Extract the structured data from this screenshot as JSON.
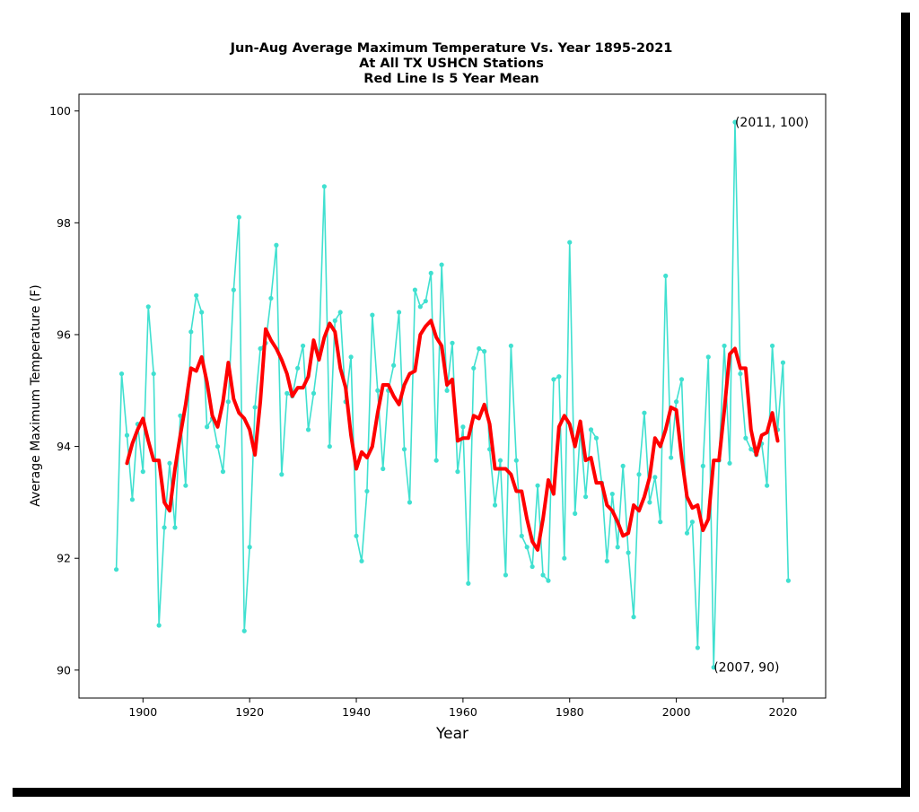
{
  "chart_data": {
    "type": "line",
    "title_lines": [
      "Jun-Aug Average Maximum Temperature Vs. Year 1895-2021",
      "At All TX USHCN Stations",
      "Red Line Is 5 Year Mean"
    ],
    "xlabel": "Year",
    "ylabel": "Average Maximum Temperature (F)",
    "xlim": [
      1888,
      2028
    ],
    "ylim": [
      89.5,
      100.3
    ],
    "xticks": [
      1900,
      1920,
      1940,
      1960,
      1980,
      2000,
      2020
    ],
    "yticks": [
      90,
      92,
      94,
      96,
      98,
      100
    ],
    "grid": false,
    "colors": {
      "series": "#40e0d0",
      "mean": "#ff0000"
    },
    "x": [
      1895,
      1896,
      1897,
      1898,
      1899,
      1900,
      1901,
      1902,
      1903,
      1904,
      1905,
      1906,
      1907,
      1908,
      1909,
      1910,
      1911,
      1912,
      1913,
      1914,
      1915,
      1916,
      1917,
      1918,
      1919,
      1920,
      1921,
      1922,
      1923,
      1924,
      1925,
      1926,
      1927,
      1928,
      1929,
      1930,
      1931,
      1932,
      1933,
      1934,
      1935,
      1936,
      1937,
      1938,
      1939,
      1940,
      1941,
      1942,
      1943,
      1944,
      1945,
      1946,
      1947,
      1948,
      1949,
      1950,
      1951,
      1952,
      1953,
      1954,
      1955,
      1956,
      1957,
      1958,
      1959,
      1960,
      1961,
      1962,
      1963,
      1964,
      1965,
      1966,
      1967,
      1968,
      1969,
      1970,
      1971,
      1972,
      1973,
      1974,
      1975,
      1976,
      1977,
      1978,
      1979,
      1980,
      1981,
      1982,
      1983,
      1984,
      1985,
      1986,
      1987,
      1988,
      1989,
      1990,
      1991,
      1992,
      1993,
      1994,
      1995,
      1996,
      1997,
      1998,
      1999,
      2000,
      2001,
      2002,
      2003,
      2004,
      2005,
      2006,
      2007,
      2008,
      2009,
      2010,
      2011,
      2012,
      2013,
      2014,
      2015,
      2016,
      2017,
      2018,
      2019,
      2020,
      2021
    ],
    "series": [
      {
        "values": [
          91.8,
          95.3,
          94.2,
          93.05,
          94.4,
          93.55,
          96.5,
          95.3,
          90.8,
          92.55,
          93.7,
          92.55,
          94.55,
          93.3,
          96.05,
          96.7,
          96.4,
          94.35,
          94.5,
          94.0,
          93.55,
          94.8,
          96.8,
          98.1,
          90.7,
          92.2,
          94.7,
          95.75,
          95.85,
          96.65,
          97.6,
          93.5,
          94.95,
          94.9,
          95.4,
          95.8,
          94.3,
          94.95,
          95.7,
          98.65,
          94.0,
          96.25,
          96.4,
          94.8,
          95.6,
          92.4,
          91.95,
          93.2,
          96.35,
          95.0,
          93.6,
          95.0,
          95.45,
          96.4,
          93.95,
          93.0,
          96.8,
          96.5,
          96.6,
          97.1,
          93.75,
          97.25,
          95.0,
          95.85,
          93.55,
          94.35,
          91.55,
          95.4,
          95.75,
          95.7,
          93.95,
          92.95,
          93.75,
          91.7,
          95.8,
          93.75,
          92.4,
          92.2,
          91.85,
          93.3,
          91.7,
          91.6,
          95.2,
          95.25,
          92.0,
          97.65,
          92.8,
          94.3,
          93.1,
          94.3,
          94.15,
          93.35,
          91.95,
          93.15,
          92.2,
          93.65,
          92.1,
          90.95,
          93.5,
          94.6,
          93.0,
          93.45,
          92.65,
          97.05,
          93.8,
          94.8,
          95.2,
          92.45,
          92.65,
          90.4,
          93.65,
          95.6,
          90.05,
          93.75,
          95.8,
          93.7,
          99.8,
          95.3,
          94.15,
          93.95,
          93.85,
          94.05,
          93.3,
          95.8,
          94.3,
          95.5,
          91.6
        ]
      },
      {
        "values": [
          null,
          null,
          93.7,
          94.05,
          94.3,
          94.5,
          94.1,
          93.75,
          93.75,
          93.0,
          92.85,
          93.6,
          94.2,
          94.75,
          95.4,
          95.35,
          95.6,
          95.15,
          94.55,
          94.35,
          94.8,
          95.5,
          94.85,
          94.6,
          94.5,
          94.3,
          93.85,
          94.8,
          96.1,
          95.9,
          95.75,
          95.55,
          95.3,
          94.9,
          95.05,
          95.05,
          95.25,
          95.9,
          95.55,
          95.95,
          96.2,
          96.05,
          95.4,
          95.05,
          94.2,
          93.6,
          93.9,
          93.8,
          94.0,
          94.6,
          95.1,
          95.1,
          94.9,
          94.75,
          95.1,
          95.3,
          95.35,
          96.0,
          96.15,
          96.25,
          95.95,
          95.8,
          95.1,
          95.2,
          94.1,
          94.15,
          94.15,
          94.55,
          94.5,
          94.75,
          94.4,
          93.6,
          93.6,
          93.6,
          93.5,
          93.2,
          93.2,
          92.7,
          92.3,
          92.15,
          92.7,
          93.4,
          93.15,
          94.35,
          94.55,
          94.4,
          94.0,
          94.45,
          93.75,
          93.8,
          93.35,
          93.35,
          92.95,
          92.85,
          92.65,
          92.4,
          92.45,
          92.95,
          92.85,
          93.1,
          93.45,
          94.15,
          94.0,
          94.3,
          94.7,
          94.65,
          93.8,
          93.1,
          92.9,
          92.95,
          92.5,
          92.7,
          93.75,
          93.75,
          94.65,
          95.65,
          95.75,
          95.4,
          95.4,
          94.3,
          93.85,
          94.2,
          94.25,
          94.6,
          94.1,
          null,
          null
        ]
      }
    ],
    "annotations": [
      {
        "text": "(2011, 100)",
        "x": 2011,
        "y": 99.8
      },
      {
        "text": "(2007, 90)",
        "x": 2007,
        "y": 90.05
      }
    ]
  }
}
